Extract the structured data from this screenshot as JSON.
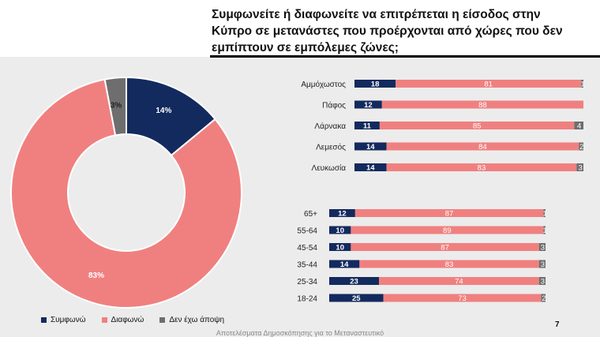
{
  "title": "Συμφωνείτε ή διαφωνείτε να επιτρέπεται η είσοδος στην Κύπρο σε μετανάστες που προέρχονται από χώρες που δεν εμπίπτουν σε εμπόλεμες ζώνες;",
  "page_number": "7",
  "footer": "Αποτελέσματα Δημοσκόπησης για το Μεταναστευτικό",
  "colors": {
    "agree": "#132a5e",
    "disagree": "#f08080",
    "no_opinion": "#6e6e6e"
  },
  "legend": [
    {
      "label": "Συμφωνώ",
      "color": "#132a5e"
    },
    {
      "label": "Διαφωνώ",
      "color": "#f08080"
    },
    {
      "label": "Δεν έχω άποψη",
      "color": "#6e6e6e"
    }
  ],
  "chart_data": [
    {
      "type": "pie",
      "variant": "donut",
      "labels": [
        "Συμφωνώ",
        "Διαφωνώ",
        "Δεν έχω άποψη"
      ],
      "values": [
        14,
        83,
        3
      ],
      "value_labels": [
        "14%",
        "83%",
        "3%"
      ]
    },
    {
      "type": "bar",
      "orientation": "horizontal",
      "stacked": true,
      "categories": [
        "Αμμόχωστος",
        "Πάφος",
        "Λάρνακα",
        "Λεμεσός",
        "Λευκωσία"
      ],
      "series": [
        {
          "name": "Συμφωνώ",
          "values": [
            18,
            12,
            11,
            14,
            14
          ]
        },
        {
          "name": "Διαφωνώ",
          "values": [
            81,
            88,
            85,
            84,
            83
          ]
        },
        {
          "name": "Δεν έχω άποψη",
          "values": [
            1,
            0,
            4,
            2,
            3
          ]
        }
      ]
    },
    {
      "type": "bar",
      "orientation": "horizontal",
      "stacked": true,
      "categories": [
        "65+",
        "55-64",
        "45-54",
        "35-44",
        "25-34",
        "18-24"
      ],
      "series": [
        {
          "name": "Συμφωνώ",
          "values": [
            12,
            10,
            10,
            14,
            23,
            25
          ]
        },
        {
          "name": "Διαφωνώ",
          "values": [
            87,
            89,
            87,
            83,
            74,
            73
          ]
        },
        {
          "name": "Δεν έχω άποψη",
          "values": [
            1,
            1,
            3,
            3,
            3,
            2
          ]
        }
      ]
    }
  ]
}
